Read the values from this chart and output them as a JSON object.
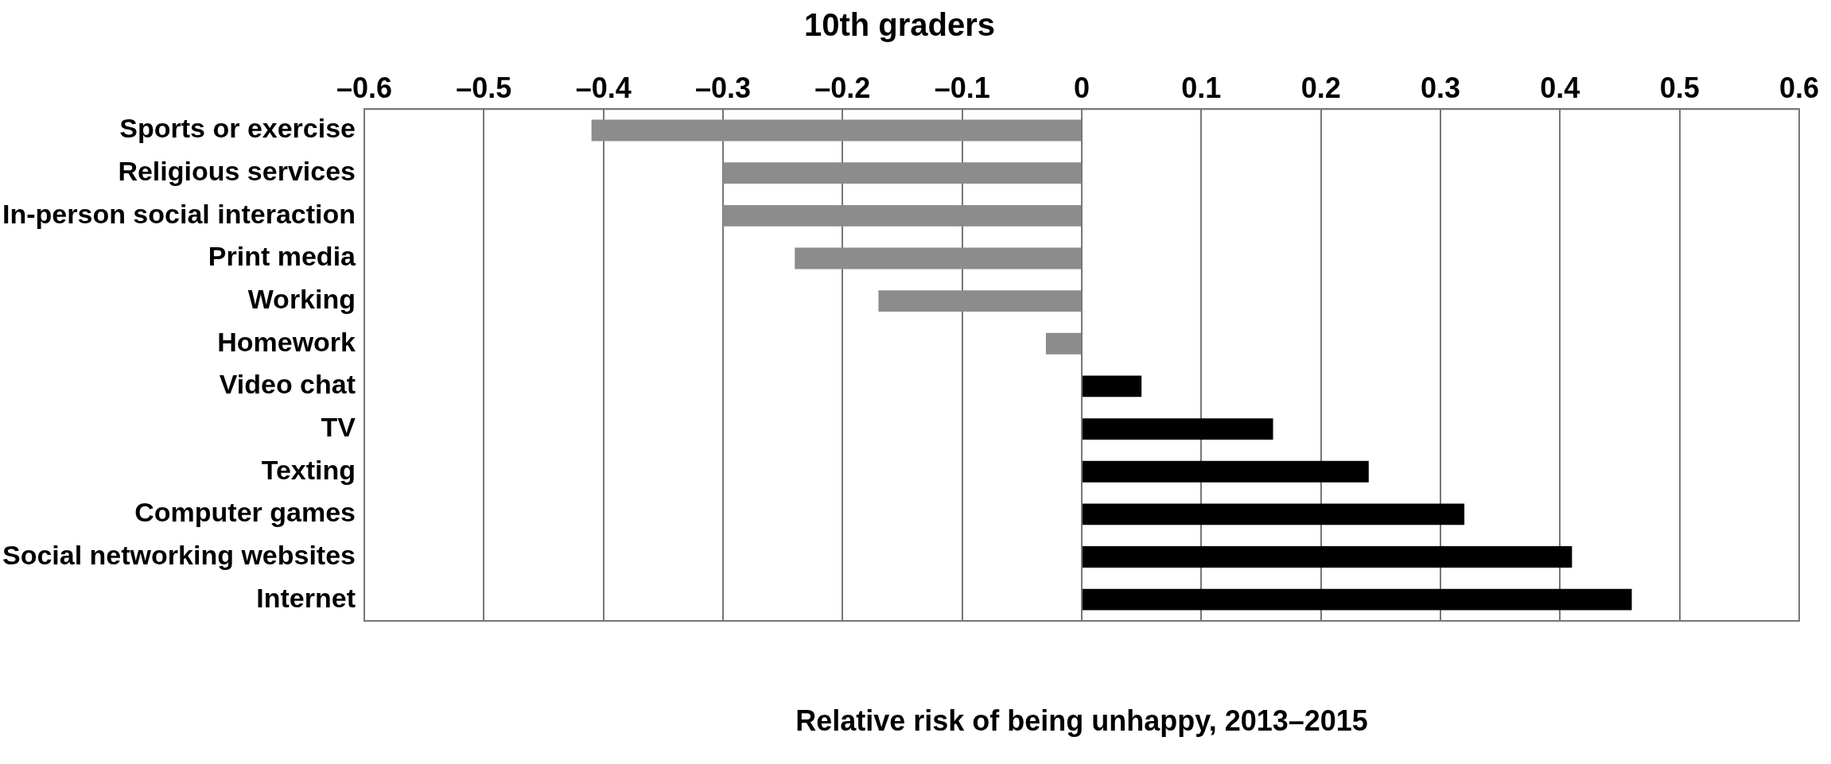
{
  "chart_data": {
    "type": "bar",
    "orientation": "horizontal",
    "title": "10th graders",
    "xlabel": "Relative risk of being unhappy, 2013–2015",
    "categories": [
      "Sports or exercise",
      "Religious services",
      "In-person social interaction",
      "Print media",
      "Working",
      "Homework",
      "Video chat",
      "TV",
      "Texting",
      "Computer games",
      "Social networking websites",
      "Internet"
    ],
    "values": [
      -0.41,
      -0.3,
      -0.3,
      -0.24,
      -0.17,
      -0.03,
      0.05,
      0.16,
      0.24,
      0.32,
      0.41,
      0.46
    ],
    "colors": [
      "#8c8c8c",
      "#8c8c8c",
      "#8c8c8c",
      "#8c8c8c",
      "#8c8c8c",
      "#8c8c8c",
      "#000000",
      "#000000",
      "#000000",
      "#000000",
      "#000000",
      "#000000"
    ],
    "xlim": [
      -0.6,
      0.6
    ],
    "xticks": [
      {
        "value": -0.6,
        "label": "–0.6"
      },
      {
        "value": -0.5,
        "label": "–0.5"
      },
      {
        "value": -0.4,
        "label": "–0.4"
      },
      {
        "value": -0.3,
        "label": "–0.3"
      },
      {
        "value": -0.2,
        "label": "–0.2"
      },
      {
        "value": -0.1,
        "label": "–0.1"
      },
      0,
      0.1,
      0.2,
      0.3,
      0.4,
      0.5,
      0.6
    ],
    "grid": "x",
    "legend": false
  }
}
